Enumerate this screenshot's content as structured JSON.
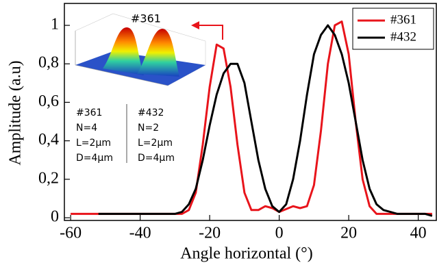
{
  "chart_data": {
    "type": "line",
    "xlabel": "Angle horizontal (°)",
    "ylabel": "Amplitude (a.u)",
    "x": [
      -60,
      -58,
      -56,
      -54,
      -52,
      -50,
      -48,
      -46,
      -44,
      -42,
      -40,
      -38,
      -36,
      -34,
      -32,
      -30,
      -28,
      -26,
      -24,
      -22,
      -20,
      -18,
      -16,
      -14,
      -12,
      -10,
      -8,
      -6,
      -4,
      -2,
      0,
      2,
      4,
      6,
      8,
      10,
      12,
      14,
      16,
      18,
      20,
      22,
      24,
      26,
      28,
      30,
      32,
      34,
      36,
      38,
      40,
      42,
      44
    ],
    "series": [
      {
        "name": "#361",
        "color": "#e8141b",
        "values": [
          0.02,
          0.02,
          0.02,
          0.02,
          0.02,
          0.02,
          0.02,
          0.02,
          0.02,
          0.02,
          0.02,
          0.02,
          0.02,
          0.02,
          0.02,
          0.02,
          0.02,
          0.04,
          0.13,
          0.38,
          0.68,
          0.9,
          0.88,
          0.68,
          0.38,
          0.13,
          0.04,
          0.04,
          0.06,
          0.05,
          0.03,
          0.045,
          0.06,
          0.05,
          0.06,
          0.17,
          0.45,
          0.8,
          1.0,
          1.02,
          0.85,
          0.5,
          0.2,
          0.06,
          0.02,
          0.02,
          0.02,
          0.02,
          0.02,
          0.02,
          0.02,
          0.02,
          0.02
        ]
      },
      {
        "name": "#432",
        "color": "#000000",
        "values": [
          null,
          null,
          null,
          null,
          0.02,
          0.02,
          0.02,
          0.02,
          0.02,
          0.02,
          0.02,
          0.02,
          0.02,
          0.02,
          0.02,
          0.02,
          0.03,
          0.07,
          0.15,
          0.3,
          0.48,
          0.64,
          0.75,
          0.8,
          0.8,
          0.7,
          0.5,
          0.3,
          0.15,
          0.06,
          0.03,
          0.07,
          0.2,
          0.4,
          0.64,
          0.85,
          0.95,
          1.0,
          0.95,
          0.85,
          0.7,
          0.5,
          0.3,
          0.15,
          0.07,
          0.04,
          0.03,
          0.02,
          0.02,
          0.02,
          0.02,
          0.02,
          0.01
        ]
      }
    ],
    "xlim": [
      -61.8,
      45.2
    ],
    "xticks": [
      -60,
      -40,
      -20,
      0,
      20,
      40
    ],
    "ylim": [
      -0.014,
      1.114
    ],
    "yticks": [
      0,
      {
        "value": 0.2,
        "label": "0,2"
      },
      {
        "value": 0.4,
        "label": "0,4"
      },
      {
        "value": 0.6,
        "label": "0,6"
      },
      {
        "value": 0.8,
        "label": "0,8"
      },
      1
    ],
    "grid": false,
    "legend": "upper right",
    "annotations": {
      "inset_title": "#361",
      "left_column": [
        "#361",
        "N=4",
        "L=2µm",
        "D=4µm"
      ],
      "right_column": [
        "#432",
        "N=2",
        "L=2µm",
        "D=4µm"
      ]
    }
  }
}
